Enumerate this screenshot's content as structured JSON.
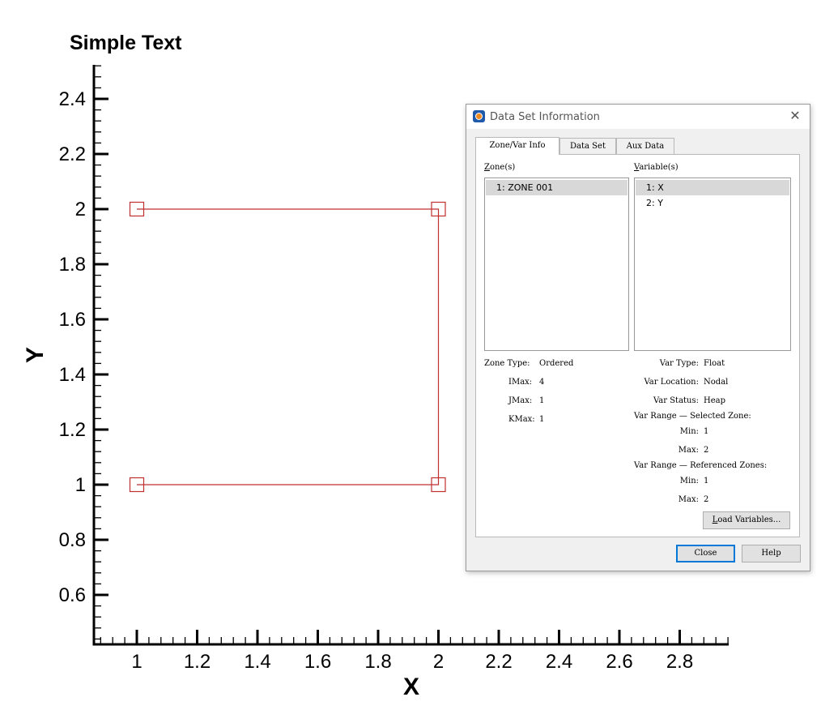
{
  "plot": {
    "title": "Simple Text",
    "xlabel": "X",
    "ylabel": "Y",
    "x_ticks": [
      "1",
      "1.2",
      "1.4",
      "1.6",
      "1.8",
      "2",
      "2.2",
      "2.4",
      "2.6",
      "2.8"
    ],
    "y_ticks": [
      "0.6",
      "0.8",
      "1",
      "1.2",
      "1.4",
      "1.6",
      "1.8",
      "2",
      "2.2",
      "2.4"
    ],
    "line_color": "#c03030"
  },
  "chart_data": {
    "type": "line",
    "title": "Simple Text",
    "xlabel": "X",
    "ylabel": "Y",
    "xlim": [
      0.87,
      2.96
    ],
    "ylim": [
      0.43,
      2.53
    ],
    "grid": false,
    "series": [
      {
        "x": [
          1,
          2,
          2,
          1
        ],
        "y": [
          1,
          1,
          2,
          2
        ],
        "marker": "square"
      }
    ]
  },
  "dialog": {
    "title": "Data Set Information",
    "close_glyph": "✕",
    "tabs": [
      "Zone/Var Info",
      "Data Set",
      "Aux Data"
    ],
    "zones_label_key": "Z",
    "zones_label_rest": "one(s)",
    "variables_label_key": "V",
    "variables_label_rest": "ariable(s)",
    "zones": [
      "1: ZONE 001"
    ],
    "variables": [
      "1: X",
      "2: Y"
    ],
    "zone_type_label": "Zone Type:",
    "zone_type": "Ordered",
    "imax_label": "IMax:",
    "imax": "4",
    "jmax_label": "JMax:",
    "jmax": "1",
    "kmax_label": "KMax:",
    "kmax": "1",
    "var_type_label": "Var Type:",
    "var_type": "Float",
    "var_location_label": "Var Location:",
    "var_location": "Nodal",
    "var_status_label": "Var Status:",
    "var_status": "Heap",
    "range_selected_label": "Var Range — Selected Zone:",
    "min_label": "Min:",
    "max_label": "Max:",
    "sel_min": "1",
    "sel_max": "2",
    "range_referenced_label": "Var Range — Referenced Zones:",
    "ref_min": "1",
    "ref_max": "2",
    "load_key": "L",
    "load_rest": "oad Variables...",
    "close_button": "Close",
    "help_button": "Help"
  }
}
